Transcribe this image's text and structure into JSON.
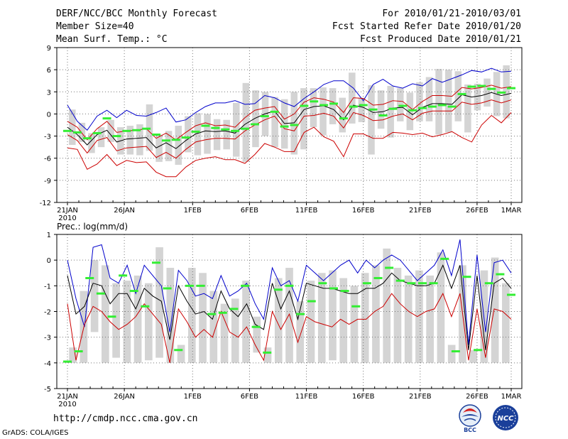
{
  "header": {
    "title": "DERF/NCC/BCC Monthly Forecast",
    "member_size": "Member Size=40",
    "variable": "Mean Surf. Temp.: °C",
    "range": "For 2010/01/21-2010/03/01",
    "started": "Fcst Started Refer Date 2010/01/20",
    "produced": "Fcst Produced Date 2010/01/21"
  },
  "footer": {
    "url": "http://cmdp.ncc.cma.gov.cn",
    "grads": "GrADS: COLA/IGES"
  },
  "logos": {
    "bcc": "BCC",
    "ncc": "NCC"
  },
  "colors": {
    "max": "#0000cc",
    "min": "#cc0000",
    "std": "#cc0000",
    "mean": "#000000",
    "obs": "#33ee33",
    "bar": "#d4d4d4"
  },
  "chart_data": [
    {
      "type": "line",
      "title": "Mean Surf. Temp.: °C",
      "ylim": [
        -12,
        9
      ],
      "yticks": [
        -12,
        -9,
        -6,
        -3,
        0,
        3,
        6,
        9
      ],
      "xticks": [
        {
          "day": 1,
          "label": "21JAN",
          "sub": "2010"
        },
        {
          "day": 6,
          "label": "26JAN"
        },
        {
          "day": 12,
          "label": "1FEB"
        },
        {
          "day": 17,
          "label": "6FEB"
        },
        {
          "day": 22,
          "label": "11FEB"
        },
        {
          "day": 27,
          "label": "16FEB"
        },
        {
          "day": 32,
          "label": "21FEB"
        },
        {
          "day": 37,
          "label": "26FEB"
        },
        {
          "day": 40,
          "label": "1MAR"
        }
      ],
      "series": [
        {
          "name": "max",
          "values": [
            1.2,
            -1,
            -2.2,
            -0.3,
            0.5,
            -0.5,
            0.5,
            -0.2,
            -0.3,
            0.2,
            0.8,
            -1.1,
            -0.8,
            0.2,
            1,
            1.5,
            1.5,
            1.8,
            1.3,
            1.4,
            2.5,
            2.2,
            1.5,
            1,
            2.1,
            3,
            4,
            4.5,
            4.5,
            3.5,
            1.8,
            4,
            4.7,
            3.8,
            3.5,
            4.1,
            3.8,
            4.8,
            4.3,
            4.8,
            5.3,
            5.9,
            5.7,
            6.2,
            5.7,
            5.8
          ]
        },
        {
          "name": "std_upper",
          "values": [
            -1,
            -1.8,
            -3.5,
            -2,
            -1,
            -2.5,
            -2.3,
            -2.2,
            -2,
            -3.3,
            -2.6,
            -3.5,
            -2.5,
            -1.6,
            -1.2,
            -1.6,
            -1.5,
            -1.8,
            -0.5,
            0.5,
            0.8,
            1,
            -0.7,
            0,
            1.6,
            2.2,
            2,
            1.6,
            0.2,
            2.2,
            2.1,
            1.2,
            1.3,
            1.8,
            1.7,
            0.6,
            1.7,
            2.5,
            2.5,
            2.4,
            3.6,
            3.4,
            3.6,
            3.9,
            3.5,
            3.7
          ]
        },
        {
          "name": "mean",
          "values": [
            -1.8,
            -2.8,
            -4.2,
            -2.8,
            -2.2,
            -3.8,
            -3.4,
            -3.3,
            -3.2,
            -4.6,
            -3.9,
            -4.7,
            -3.6,
            -2.7,
            -2.3,
            -2.4,
            -2.3,
            -2.6,
            -1.4,
            -0.6,
            0,
            0.4,
            -1.3,
            -1.2,
            0.6,
            1,
            1.1,
            0.6,
            -0.8,
            1.2,
            0.9,
            0.2,
            0.3,
            0.8,
            0.9,
            -0.1,
            0.9,
            1.4,
            1.4,
            1.3,
            2.6,
            2.3,
            2.5,
            2.9,
            2.5,
            2.8
          ]
        },
        {
          "name": "std_lower",
          "values": [
            -2.8,
            -3.6,
            -5.3,
            -3.6,
            -3.2,
            -5,
            -4.6,
            -4.5,
            -4.4,
            -5.9,
            -5.2,
            -6,
            -4.8,
            -3.8,
            -3.5,
            -3.3,
            -3.3,
            -3.4,
            -2.3,
            -1.5,
            -0.8,
            -0.3,
            -2,
            -2.3,
            -0.3,
            -0.2,
            0.1,
            -0.3,
            -1.9,
            0.2,
            -0.2,
            -0.9,
            -0.8,
            -0.3,
            0,
            -0.8,
            0.1,
            0.4,
            0.4,
            0.4,
            1.6,
            1.3,
            1.5,
            1.9,
            1.5,
            1.9
          ]
        },
        {
          "name": "min",
          "values": [
            -4.6,
            -4.8,
            -7.5,
            -6.8,
            -5.5,
            -7,
            -6.3,
            -6.6,
            -6.5,
            -7.9,
            -8.5,
            -8.5,
            -7.2,
            -6.3,
            -6,
            -5.8,
            -6.2,
            -6.2,
            -6.7,
            -5.5,
            -4,
            -4.5,
            -5.1,
            -5.1,
            -2.5,
            -1.8,
            -3.1,
            -3.7,
            -5.8,
            -2.7,
            -2.7,
            -3.3,
            -3.3,
            -2.5,
            -2.6,
            -2.8,
            -2.6,
            -3.1,
            -2.8,
            -2.4,
            -3.2,
            -3.8,
            -1.5,
            -0.2,
            -1.2,
            0.2
          ]
        },
        {
          "name": "observed",
          "values": [
            -2.3,
            -2.5,
            -3.3,
            -2.6,
            -0.6,
            -3,
            -2.3,
            -2.2,
            -2,
            -2.8,
            -3.6,
            -3.5,
            -3.2,
            -2.4,
            -1.6,
            -1.9,
            -2.1,
            -2.3,
            -2,
            -1.4,
            -0.3,
            0.3,
            -1.7,
            -1.5,
            1.1,
            1.7,
            1.2,
            1.4,
            -0.6,
            1,
            1.2,
            0.6,
            -0.2,
            0.7,
            1.1,
            0.5,
            0.8,
            1,
            1.2,
            1,
            2.7,
            3.7,
            3.8,
            3.4,
            2.9,
            3.5
          ]
        }
      ],
      "bars": [
        {
          "low": -4.2,
          "high": 0.6
        },
        {
          "low": -3.8,
          "high": -1.2
        },
        {
          "low": -5.3,
          "high": -2.6
        },
        {
          "low": -4.5,
          "high": -1.8
        },
        {
          "low": -3.8,
          "high": -0.8
        },
        {
          "low": -5.5,
          "high": -1.8
        },
        {
          "low": -5.5,
          "high": -1.6
        },
        {
          "low": -5.6,
          "high": -1.4
        },
        {
          "low": -5,
          "high": 1.3
        },
        {
          "low": -6.5,
          "high": -2.8
        },
        {
          "low": -6.4,
          "high": -2.3
        },
        {
          "low": -6.9,
          "high": -1.6
        },
        {
          "low": -5.2,
          "high": -0.3
        },
        {
          "low": -5.6,
          "high": 0.1
        },
        {
          "low": -5.4,
          "high": 0
        },
        {
          "low": -4.9,
          "high": -0.7
        },
        {
          "low": -4.8,
          "high": -0.8
        },
        {
          "low": -5.8,
          "high": 1.5
        },
        {
          "low": -6.5,
          "high": 4.2
        },
        {
          "low": -4.5,
          "high": 3.2
        },
        {
          "low": -3,
          "high": 3
        },
        {
          "low": -4.5,
          "high": 2.3
        },
        {
          "low": -4.7,
          "high": 2
        },
        {
          "low": -5.5,
          "high": 3
        },
        {
          "low": -4.8,
          "high": 3.5
        },
        {
          "low": -1.8,
          "high": 3.5
        },
        {
          "low": -2.9,
          "high": 3.6
        },
        {
          "low": -1.4,
          "high": 3.5
        },
        {
          "low": -2.5,
          "high": 2.2
        },
        {
          "low": -1.3,
          "high": 5.6
        },
        {
          "low": -1.1,
          "high": 2.2
        },
        {
          "low": -5.5,
          "high": 3.9
        },
        {
          "low": -2,
          "high": 3.2
        },
        {
          "low": -3.2,
          "high": 3.8
        },
        {
          "low": -1,
          "high": 3.5
        },
        {
          "low": -2.2,
          "high": 2.9
        },
        {
          "low": -1,
          "high": 4.3
        },
        {
          "low": -1,
          "high": 5
        },
        {
          "low": -2.8,
          "high": 6.1
        },
        {
          "low": -2.5,
          "high": 6
        },
        {
          "low": -1,
          "high": 5.8
        },
        {
          "low": -2.5,
          "high": 4
        },
        {
          "low": 0.5,
          "high": 4.1
        },
        {
          "low": 1,
          "high": 4.8
        },
        {
          "low": -0.3,
          "high": 5.7
        },
        {
          "low": -0.6,
          "high": 6.6
        }
      ]
    },
    {
      "type": "line",
      "title": "Prec.: log(mm/d)",
      "ylim": [
        -5,
        1
      ],
      "yticks": [
        -5,
        -4,
        -3,
        -2,
        -1,
        0,
        1
      ],
      "xticks": [
        {
          "day": 1,
          "label": "21JAN",
          "sub": "2010"
        },
        {
          "day": 6,
          "label": "26JAN"
        },
        {
          "day": 12,
          "label": "1FEB"
        },
        {
          "day": 17,
          "label": "6FEB"
        },
        {
          "day": 22,
          "label": "11FEB"
        },
        {
          "day": 27,
          "label": "16FEB"
        },
        {
          "day": 32,
          "label": "21FEB"
        },
        {
          "day": 37,
          "label": "26FEB"
        },
        {
          "day": 40,
          "label": "1MAR"
        }
      ],
      "series": [
        {
          "name": "max",
          "values": [
            0,
            -1.5,
            -2.6,
            0.5,
            0.6,
            -0.7,
            -0.9,
            -0.2,
            -1.3,
            -0.2,
            -0.6,
            -1,
            -2.8,
            -0.4,
            -0.8,
            -1.4,
            -1.3,
            -1.5,
            -0.6,
            -1.4,
            -1.2,
            -0.9,
            -1.7,
            -2.3,
            -0.3,
            -1,
            -0.8,
            -1.6,
            -0.2,
            -0.5,
            -0.8,
            -0.5,
            -0.2,
            0,
            -0.5,
            0,
            -0.3,
            0,
            0.2,
            0,
            -0.4,
            -0.8,
            -0.5,
            -0.2,
            0.4,
            -0.6,
            0.8,
            -3.3,
            0.2,
            -2.8,
            -0.1,
            0,
            -0.5
          ]
        },
        {
          "name": "mean",
          "values": [
            -0.6,
            -2.1,
            -1.8,
            -0.9,
            -1,
            -1.7,
            -1.3,
            -1.3,
            -1.9,
            -1.1,
            -1.4,
            -1.6,
            -3.1,
            -1,
            -1.6,
            -2.1,
            -2,
            -2.3,
            -1.2,
            -1.9,
            -2.2,
            -1.7,
            -2.5,
            -2.7,
            -0.9,
            -1.9,
            -1.2,
            -2.3,
            -0.9,
            -1,
            -1.1,
            -1.1,
            -1.2,
            -1.3,
            -1.3,
            -1.1,
            -1.1,
            -0.9,
            -0.5,
            -0.8,
            -0.9,
            -1,
            -1,
            -0.9,
            -0.2,
            -1.1,
            -0.2,
            -3.5,
            -0.6,
            -3.5,
            -0.9,
            -0.7,
            -1.1
          ]
        },
        {
          "name": "min",
          "values": [
            -1.7,
            -3.9,
            -2.5,
            -1.8,
            -2,
            -2.4,
            -2.7,
            -2.5,
            -2.2,
            -1.7,
            -2.1,
            -2.5,
            -4,
            -1.9,
            -2.4,
            -3,
            -2.7,
            -3,
            -2,
            -2.8,
            -3,
            -2.6,
            -3.3,
            -3.9,
            -2,
            -2.7,
            -2.1,
            -3.2,
            -2.2,
            -2.4,
            -2.5,
            -2.6,
            -2.3,
            -2.5,
            -2.3,
            -2.3,
            -2,
            -1.8,
            -1.3,
            -1.7,
            -2,
            -2.2,
            -2,
            -1.9,
            -1.3,
            -2.2,
            -1.3,
            -3.9,
            -1.9,
            -3.8,
            -1.9,
            -2,
            -2.3
          ]
        },
        {
          "name": "observed",
          "values": [
            -3.95,
            -3.55,
            -0.7,
            -1.3,
            -2.2,
            -0.6,
            -1.2,
            -1.8,
            -0.1,
            -1.1,
            -3.5,
            -1,
            -1,
            -2.1,
            -2.05,
            -1.9,
            -1,
            -2.6,
            -3.6,
            -1.15,
            -1,
            -2.1,
            -1.6,
            -0.9,
            -1.1,
            -1.2,
            -1.8,
            -0.9,
            -0.7,
            -0.3,
            -0.8,
            -0.9,
            -0.9,
            -0.9,
            0.05,
            -3.55,
            -0.65,
            -3.5,
            -0.9,
            -0.55,
            -1.35
          ]
        }
      ],
      "bars": [
        {
          "low": -4,
          "high": -3.4
        },
        {
          "low": -4,
          "high": -1.2
        },
        {
          "low": -2.8,
          "high": 0
        },
        {
          "low": -4,
          "high": -0.2
        },
        {
          "low": -3.8,
          "high": -0.9
        },
        {
          "low": -4,
          "high": -0.8
        },
        {
          "low": -4,
          "high": -0.6
        },
        {
          "low": -3.9,
          "high": -0.9
        },
        {
          "low": -3.8,
          "high": 0.5
        },
        {
          "low": -4,
          "high": -0.3
        },
        {
          "low": -4,
          "high": -3.3
        },
        {
          "low": -4,
          "high": -0.3
        },
        {
          "low": -4,
          "high": -0.5
        },
        {
          "low": -4,
          "high": -1.2
        },
        {
          "low": -4,
          "high": -1.7
        },
        {
          "low": -4,
          "high": -1.5
        },
        {
          "low": -4,
          "high": -0.8
        },
        {
          "low": -3.6,
          "high": -2.2
        },
        {
          "low": -4,
          "high": -3.4
        },
        {
          "low": -4,
          "high": -0.7
        },
        {
          "low": -4,
          "high": -0.3
        },
        {
          "low": -4,
          "high": -1.6
        },
        {
          "low": -4,
          "high": -0.8
        },
        {
          "low": -4,
          "high": -0.5
        },
        {
          "low": -3.9,
          "high": -0.4
        },
        {
          "low": -4,
          "high": -0.7
        },
        {
          "low": -4,
          "high": -1
        },
        {
          "low": -4,
          "high": -0.5
        },
        {
          "low": -4,
          "high": -0.2
        },
        {
          "low": -4,
          "high": 0.45
        },
        {
          "low": -4,
          "high": -0.3
        },
        {
          "low": -4,
          "high": -0.6
        },
        {
          "low": -4,
          "high": -0.4
        },
        {
          "low": -4,
          "high": -0.6
        },
        {
          "low": -4,
          "high": 0.3
        },
        {
          "low": -4,
          "high": -3.3
        },
        {
          "low": -4,
          "high": -0.2
        },
        {
          "low": -4,
          "high": -3.5
        },
        {
          "low": -4,
          "high": -0.4
        },
        {
          "low": -4,
          "high": 0.1
        },
        {
          "low": -4,
          "high": -0.9
        }
      ]
    }
  ]
}
